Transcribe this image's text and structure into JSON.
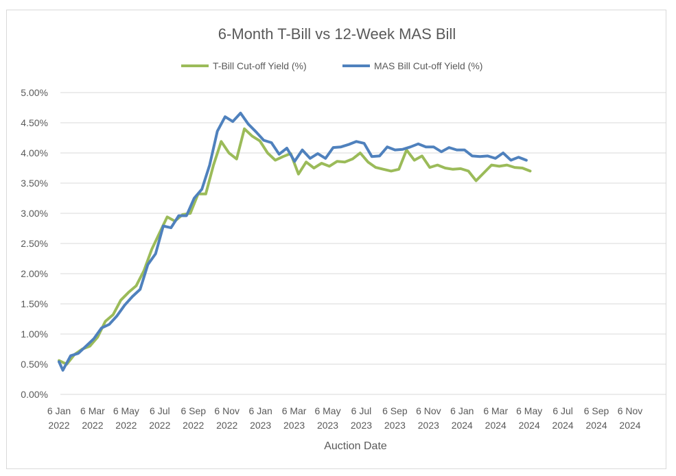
{
  "chart_data": {
    "type": "line",
    "title": "6-Month T-Bill vs 12-Week MAS Bill",
    "xlabel": "Auction Date",
    "ylabel": "",
    "ylim": [
      0,
      5
    ],
    "y_tick_labels": [
      "0.00%",
      "0.50%",
      "1.00%",
      "1.50%",
      "2.00%",
      "2.50%",
      "3.00%",
      "3.50%",
      "4.00%",
      "4.50%",
      "5.00%"
    ],
    "x_tick_labels": [
      [
        "6 Jan",
        "2022"
      ],
      [
        "6 Mar",
        "2022"
      ],
      [
        "6 May",
        "2022"
      ],
      [
        "6 Jul",
        "2022"
      ],
      [
        "6 Sep",
        "2022"
      ],
      [
        "6 Nov",
        "2022"
      ],
      [
        "6 Jan",
        "2023"
      ],
      [
        "6 Mar",
        "2023"
      ],
      [
        "6 May",
        "2023"
      ],
      [
        "6 Jul",
        "2023"
      ],
      [
        "6 Sep",
        "2023"
      ],
      [
        "6 Nov",
        "2023"
      ],
      [
        "6 Jan",
        "2024"
      ],
      [
        "6 Mar",
        "2024"
      ],
      [
        "6 May",
        "2024"
      ],
      [
        "6 Jul",
        "2024"
      ],
      [
        "6 Sep",
        "2024"
      ],
      [
        "6 Nov",
        "2024"
      ]
    ],
    "x_range": [
      "2022-01-06",
      "2024-11-06"
    ],
    "grid": true,
    "legend_position": "top",
    "series": [
      {
        "name": "T-Bill Cut-off Yield (%)",
        "color": "#9bbb59",
        "points": [
          [
            "2022-01-06",
            0.56
          ],
          [
            "2022-01-20",
            0.5
          ],
          [
            "2022-02-03",
            0.66
          ],
          [
            "2022-02-17",
            0.75
          ],
          [
            "2022-03-03",
            0.8
          ],
          [
            "2022-03-17",
            0.95
          ],
          [
            "2022-03-31",
            1.21
          ],
          [
            "2022-04-14",
            1.32
          ],
          [
            "2022-04-28",
            1.56
          ],
          [
            "2022-05-12",
            1.69
          ],
          [
            "2022-05-26",
            1.8
          ],
          [
            "2022-06-09",
            2.05
          ],
          [
            "2022-06-23",
            2.4
          ],
          [
            "2022-07-07",
            2.67
          ],
          [
            "2022-07-21",
            2.94
          ],
          [
            "2022-08-04",
            2.87
          ],
          [
            "2022-08-18",
            2.98
          ],
          [
            "2022-09-01",
            3.0
          ],
          [
            "2022-09-15",
            3.32
          ],
          [
            "2022-09-29",
            3.32
          ],
          [
            "2022-10-13",
            3.8
          ],
          [
            "2022-10-27",
            4.19
          ],
          [
            "2022-11-10",
            4.0
          ],
          [
            "2022-11-24",
            3.9
          ],
          [
            "2022-12-08",
            4.4
          ],
          [
            "2022-12-22",
            4.28
          ],
          [
            "2023-01-05",
            4.2
          ],
          [
            "2023-01-19",
            4.0
          ],
          [
            "2023-02-02",
            3.88
          ],
          [
            "2023-02-16",
            3.94
          ],
          [
            "2023-03-02",
            3.99
          ],
          [
            "2023-03-16",
            3.65
          ],
          [
            "2023-03-30",
            3.85
          ],
          [
            "2023-04-13",
            3.75
          ],
          [
            "2023-04-27",
            3.83
          ],
          [
            "2023-05-11",
            3.78
          ],
          [
            "2023-05-25",
            3.86
          ],
          [
            "2023-06-08",
            3.85
          ],
          [
            "2023-06-22",
            3.9
          ],
          [
            "2023-07-06",
            4.0
          ],
          [
            "2023-07-20",
            3.85
          ],
          [
            "2023-08-03",
            3.76
          ],
          [
            "2023-08-17",
            3.73
          ],
          [
            "2023-08-31",
            3.7
          ],
          [
            "2023-09-14",
            3.73
          ],
          [
            "2023-09-28",
            4.05
          ],
          [
            "2023-10-12",
            3.88
          ],
          [
            "2023-10-26",
            3.95
          ],
          [
            "2023-11-09",
            3.76
          ],
          [
            "2023-11-23",
            3.8
          ],
          [
            "2023-12-07",
            3.75
          ],
          [
            "2023-12-21",
            3.73
          ],
          [
            "2024-01-04",
            3.74
          ],
          [
            "2024-01-18",
            3.7
          ],
          [
            "2024-02-01",
            3.54
          ],
          [
            "2024-02-15",
            3.67
          ],
          [
            "2024-02-29",
            3.8
          ],
          [
            "2024-03-14",
            3.78
          ],
          [
            "2024-03-28",
            3.8
          ],
          [
            "2024-04-11",
            3.76
          ],
          [
            "2024-04-25",
            3.75
          ],
          [
            "2024-05-09",
            3.7
          ]
        ]
      },
      {
        "name": "MAS Bill Cut-off Yield (%)",
        "color": "#4f81bd",
        "points": [
          [
            "2022-01-06",
            0.54
          ],
          [
            "2022-01-13",
            0.4
          ],
          [
            "2022-01-27",
            0.64
          ],
          [
            "2022-02-10",
            0.68
          ],
          [
            "2022-02-24",
            0.8
          ],
          [
            "2022-03-10",
            0.92
          ],
          [
            "2022-03-24",
            1.1
          ],
          [
            "2022-04-07",
            1.16
          ],
          [
            "2022-04-21",
            1.3
          ],
          [
            "2022-05-05",
            1.48
          ],
          [
            "2022-05-19",
            1.62
          ],
          [
            "2022-06-02",
            1.74
          ],
          [
            "2022-06-16",
            2.15
          ],
          [
            "2022-06-30",
            2.33
          ],
          [
            "2022-07-14",
            2.79
          ],
          [
            "2022-07-28",
            2.76
          ],
          [
            "2022-08-11",
            2.96
          ],
          [
            "2022-08-25",
            2.96
          ],
          [
            "2022-09-08",
            3.25
          ],
          [
            "2022-09-22",
            3.4
          ],
          [
            "2022-10-06",
            3.8
          ],
          [
            "2022-10-20",
            4.36
          ],
          [
            "2022-11-03",
            4.6
          ],
          [
            "2022-11-17",
            4.52
          ],
          [
            "2022-12-01",
            4.66
          ],
          [
            "2022-12-15",
            4.48
          ],
          [
            "2022-12-29",
            4.35
          ],
          [
            "2023-01-12",
            4.21
          ],
          [
            "2023-01-26",
            4.17
          ],
          [
            "2023-02-09",
            3.98
          ],
          [
            "2023-02-23",
            4.08
          ],
          [
            "2023-03-09",
            3.86
          ],
          [
            "2023-03-23",
            4.05
          ],
          [
            "2023-04-06",
            3.91
          ],
          [
            "2023-04-20",
            3.99
          ],
          [
            "2023-05-04",
            3.91
          ],
          [
            "2023-05-18",
            4.09
          ],
          [
            "2023-06-01",
            4.1
          ],
          [
            "2023-06-15",
            4.14
          ],
          [
            "2023-06-29",
            4.19
          ],
          [
            "2023-07-13",
            4.16
          ],
          [
            "2023-07-27",
            3.94
          ],
          [
            "2023-08-10",
            3.95
          ],
          [
            "2023-08-24",
            4.1
          ],
          [
            "2023-09-07",
            4.05
          ],
          [
            "2023-09-21",
            4.06
          ],
          [
            "2023-10-05",
            4.1
          ],
          [
            "2023-10-19",
            4.15
          ],
          [
            "2023-11-02",
            4.1
          ],
          [
            "2023-11-16",
            4.1
          ],
          [
            "2023-11-30",
            4.02
          ],
          [
            "2023-12-14",
            4.09
          ],
          [
            "2023-12-28",
            4.05
          ],
          [
            "2024-01-11",
            4.05
          ],
          [
            "2024-01-25",
            3.95
          ],
          [
            "2024-02-08",
            3.94
          ],
          [
            "2024-02-22",
            3.95
          ],
          [
            "2024-03-07",
            3.91
          ],
          [
            "2024-03-21",
            4.0
          ],
          [
            "2024-04-04",
            3.88
          ],
          [
            "2024-04-18",
            3.93
          ],
          [
            "2024-05-02",
            3.88
          ]
        ]
      }
    ]
  }
}
